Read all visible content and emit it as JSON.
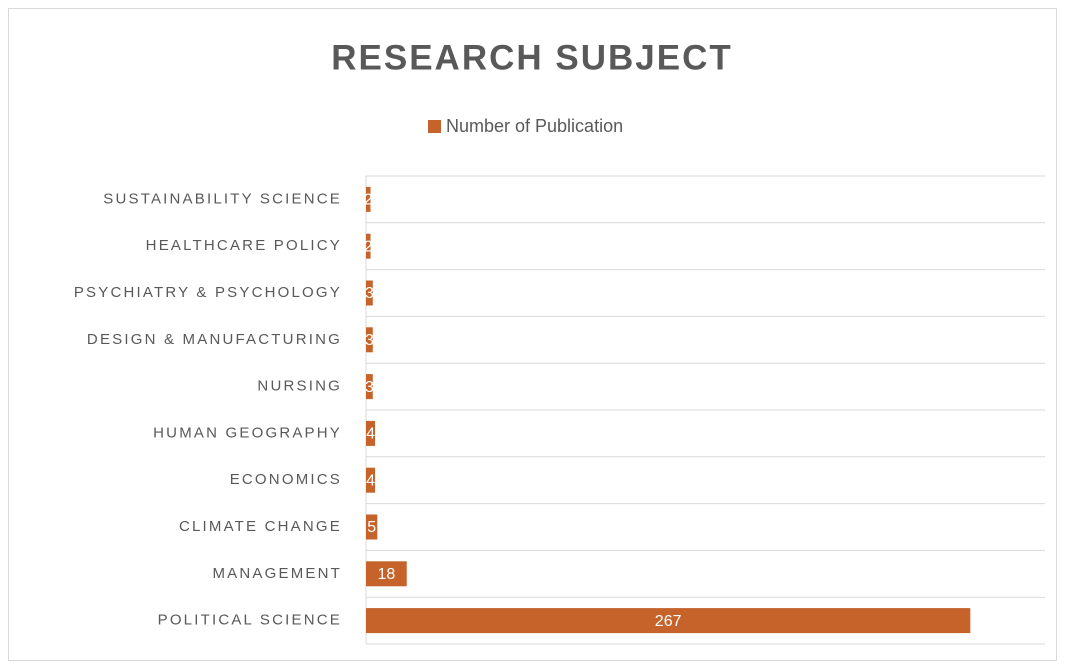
{
  "chart_data": {
    "type": "hbar",
    "title": "RESEARCH SUBJECT",
    "categories": [
      "SUSTAINABILITY SCIENCE",
      "HEALTHCARE POLICY",
      "PSYCHIATRY & PSYCHOLOGY",
      "DESIGN & MANUFACTURING",
      "NURSING",
      "HUMAN GEOGRAPHY",
      "ECONOMICS",
      "CLIMATE CHANGE",
      "MANAGEMENT",
      "POLITICAL SCIENCE"
    ],
    "series": [
      {
        "name": "Number of Publication",
        "color": "#c5632a",
        "values": [
          2,
          2,
          3,
          3,
          3,
          4,
          4,
          5,
          18,
          267
        ]
      }
    ],
    "xlim": [
      0,
      300
    ],
    "legend": "top"
  }
}
